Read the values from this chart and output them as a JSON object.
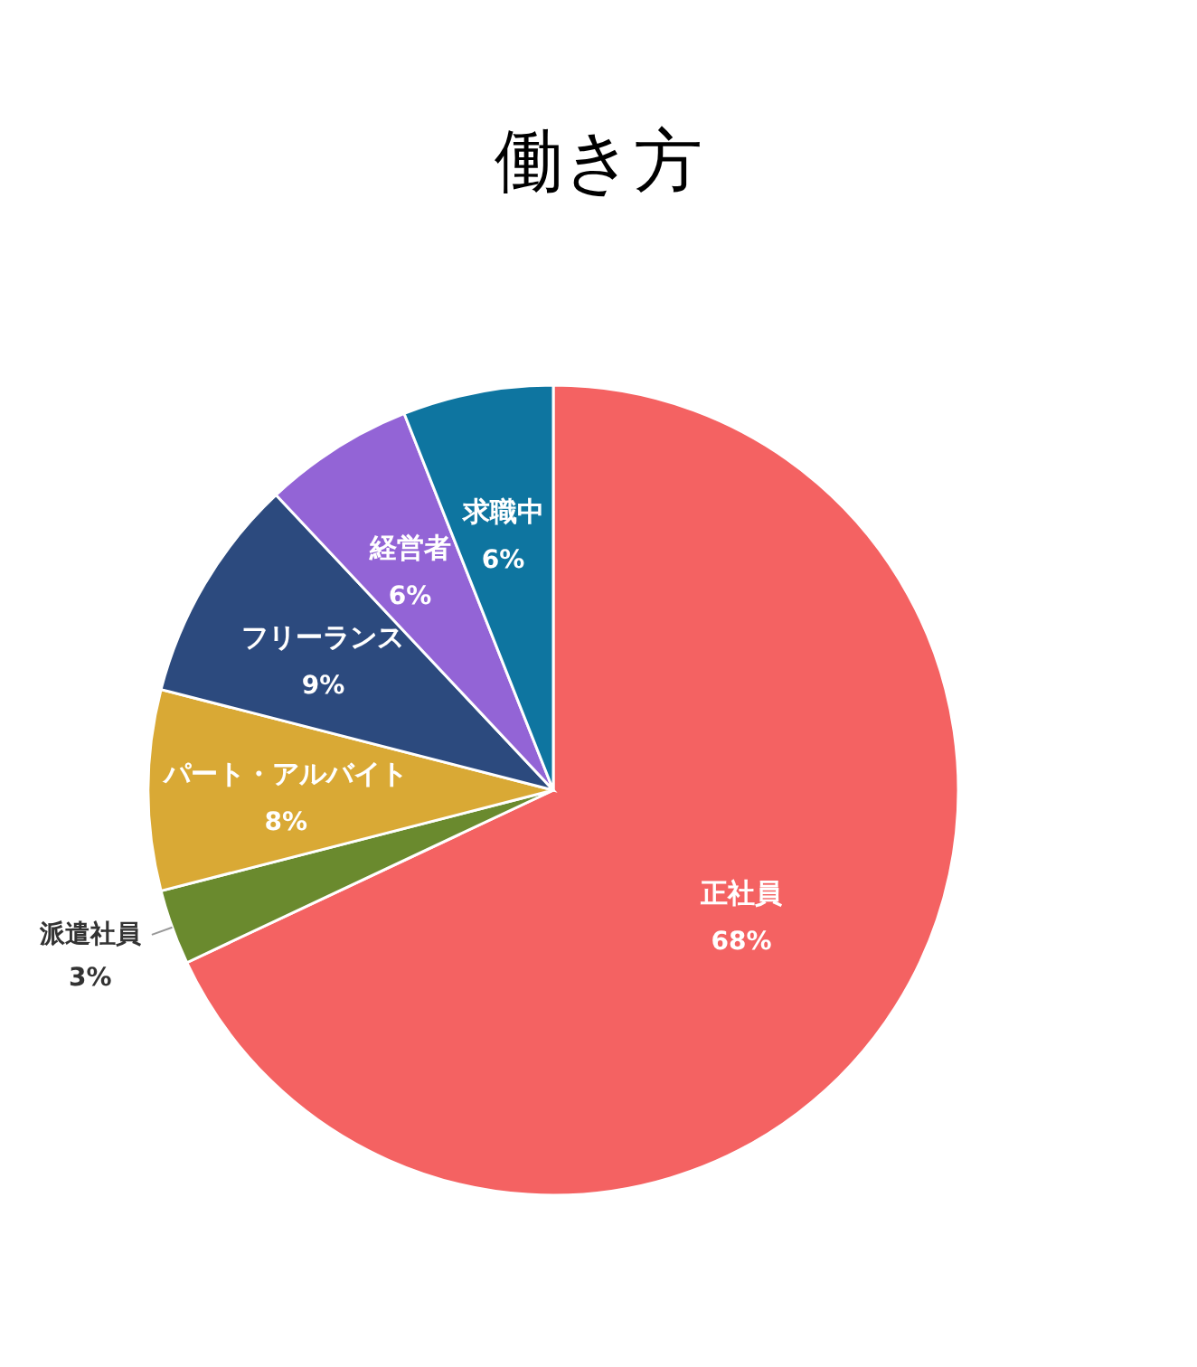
{
  "chart_data": {
    "type": "pie",
    "title": "働き方",
    "categories": [
      "正社員",
      "派遣社員",
      "パート・アルバイト",
      "フリーランス",
      "経営者",
      "求職中"
    ],
    "values": [
      68,
      3,
      8,
      9,
      6,
      6
    ],
    "colors": [
      "#f46262",
      "#6a8a2e",
      "#d9a935",
      "#2c4a7e",
      "#9364d6",
      "#0e75a0"
    ],
    "value_labels": [
      "68%",
      "3%",
      "8%",
      "9%",
      "6%",
      "6%"
    ]
  }
}
